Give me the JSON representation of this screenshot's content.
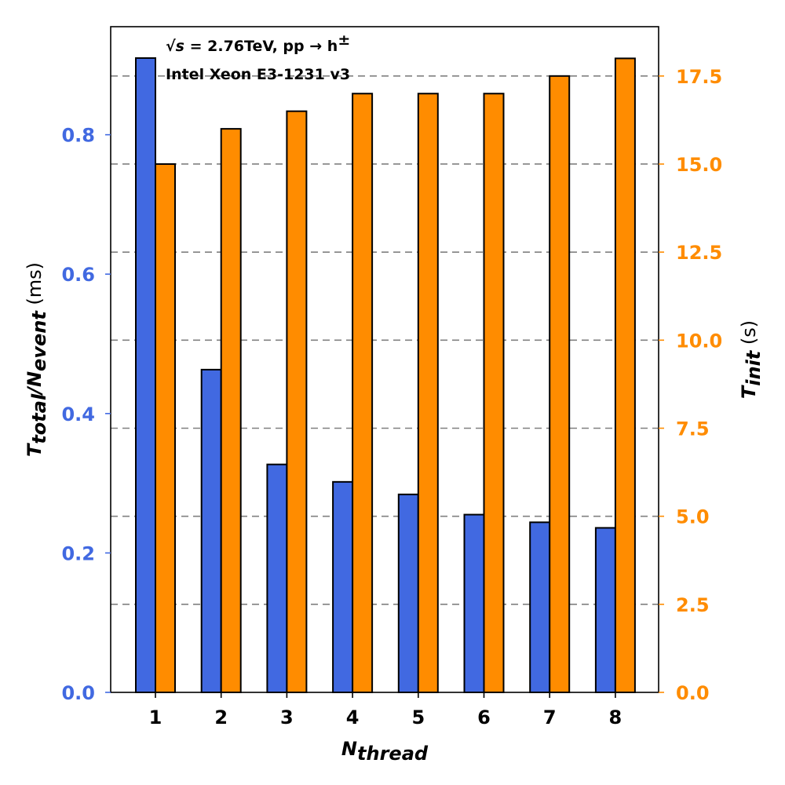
{
  "chart_data": {
    "type": "bar",
    "title": "",
    "xlabel": {
      "main": "N",
      "sub": "thread"
    },
    "ylabel_left": {
      "t": "T",
      "sub1": "total",
      "slash": "/",
      "n": "N",
      "sub2": "event",
      "unit": " (ms)"
    },
    "ylabel_right": {
      "t": "T",
      "sub": "init",
      "unit": " (s)"
    },
    "categories": [
      "1",
      "2",
      "3",
      "4",
      "5",
      "6",
      "7",
      "8"
    ],
    "series": [
      {
        "name": "T_total/N_event",
        "axis": "left",
        "color": "#4169e1",
        "values": [
          0.91,
          0.463,
          0.327,
          0.302,
          0.284,
          0.255,
          0.244,
          0.236
        ]
      },
      {
        "name": "T_init",
        "axis": "right",
        "color": "#ff8c00",
        "values": [
          15.0,
          16.0,
          16.5,
          17.0,
          17.0,
          17.0,
          17.5,
          18.0
        ]
      }
    ],
    "ylim_left": [
      0,
      0.955
    ],
    "ylim_right": [
      0,
      18.9
    ],
    "yticks_left": [
      0.0,
      0.2,
      0.4,
      0.6,
      0.8
    ],
    "ytick_labels_left": [
      "0.0",
      "0.2",
      "0.4",
      "0.6",
      "0.8"
    ],
    "yticks_right": [
      0,
      2.5,
      5.0,
      7.5,
      10.0,
      12.5,
      15.0,
      17.5
    ],
    "ytick_labels_right": [
      "0.0",
      "2.5",
      "5.0",
      "7.5",
      "10.0",
      "12.5",
      "15.0",
      "17.5"
    ],
    "grid": "horizontal dashed on right-axis ticks",
    "annotations": {
      "energy_sqrt": "√s",
      "energy_rest": " = 2.76TeV, pp → h",
      "energy_sup": "±",
      "cpu": "Intel Xeon E3-1231 v3"
    },
    "colors": {
      "left_axis": "#4169e1",
      "right_axis": "#ff8c00",
      "grid": "#808080"
    }
  }
}
